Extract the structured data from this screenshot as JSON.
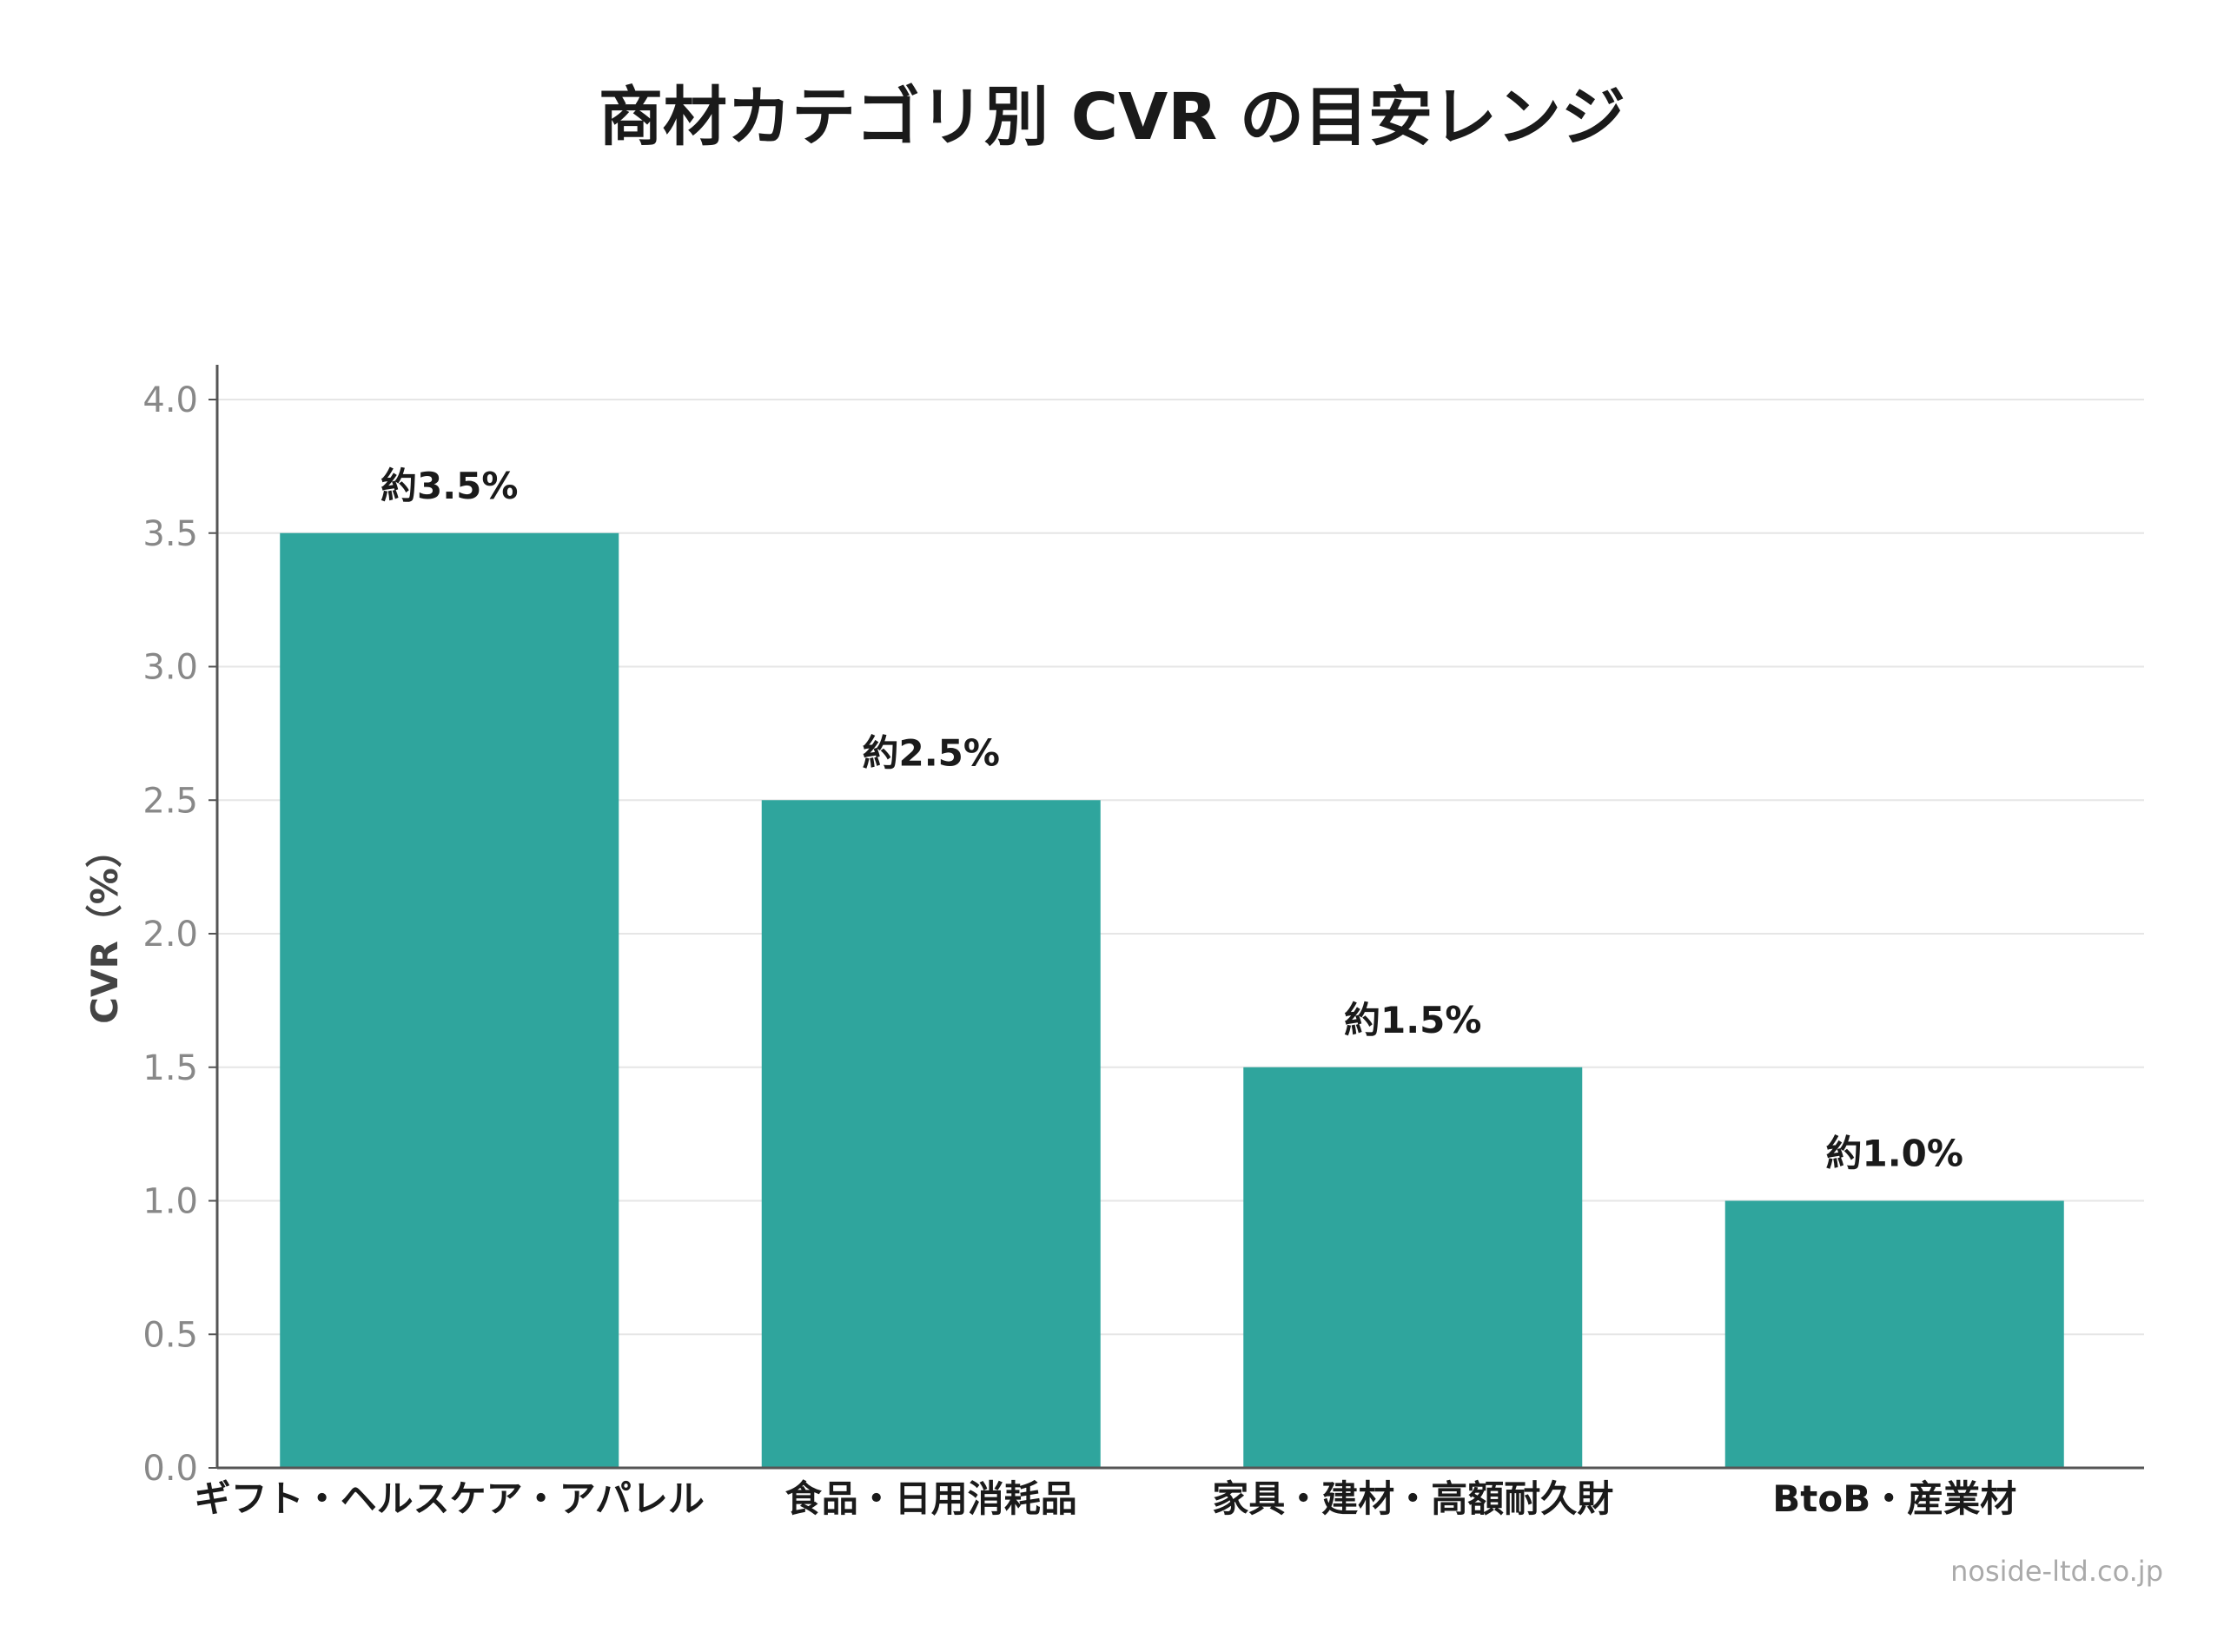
{
  "chart_data": {
    "type": "bar",
    "title": "商材カテゴリ別 CVR の目安レンジ",
    "xlabel": "",
    "ylabel": "CVR（%）",
    "categories": [
      "ギフト・ヘルスケア・アパレル",
      "食品・日用消耗品",
      "家具・建材・高額耐久財",
      "BtoB・産業材"
    ],
    "values": [
      3.5,
      2.5,
      1.5,
      1.0
    ],
    "data_labels": [
      "約3.5%",
      "約2.5%",
      "約1.5%",
      "約1.0%"
    ],
    "ylim": [
      0,
      4.0
    ],
    "yticks": [
      "0.0",
      "0.5",
      "1.0",
      "1.5",
      "2.0",
      "2.5",
      "3.0",
      "3.5",
      "4.0"
    ],
    "grid": true,
    "legend": "none",
    "bar_color": "#2fa59d",
    "grid_color": "#e6e6e6",
    "axis_color": "#555555"
  },
  "watermark": "noside-ltd.co.jp"
}
